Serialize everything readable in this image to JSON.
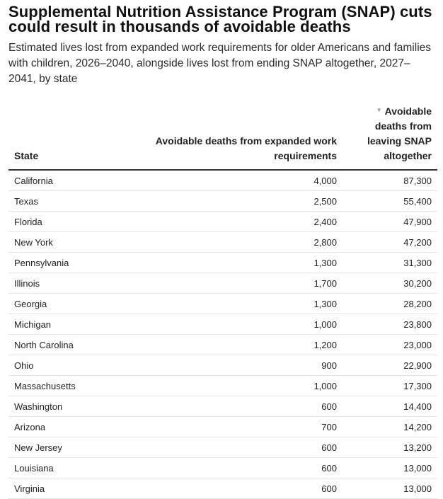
{
  "chart_data": {
    "type": "table",
    "title": "Supplemental Nutrition Assistance Program (SNAP) cuts could result in thousands of avoidable deaths",
    "subtitle": "Estimated lives lost from expanded work requirements for older Americans and families with children, 2026–2040, alongside lives lost from ending SNAP altogether, 2027–2041, by state",
    "columns": [
      "State",
      "Avoidable deaths from expanded work requirements",
      "Avoidable deaths from leaving SNAP altogether"
    ],
    "sorted_column": "Avoidable deaths from leaving SNAP altogether",
    "sort_order": "descending",
    "rows": [
      {
        "state": "California",
        "work": "4,000",
        "leave": "87,300"
      },
      {
        "state": "Texas",
        "work": "2,500",
        "leave": "55,400"
      },
      {
        "state": "Florida",
        "work": "2,400",
        "leave": "47,900"
      },
      {
        "state": "New York",
        "work": "2,800",
        "leave": "47,200"
      },
      {
        "state": "Pennsylvania",
        "work": "1,300",
        "leave": "31,300"
      },
      {
        "state": "Illinois",
        "work": "1,700",
        "leave": "30,200"
      },
      {
        "state": "Georgia",
        "work": "1,300",
        "leave": "28,200"
      },
      {
        "state": "Michigan",
        "work": "1,000",
        "leave": "23,800"
      },
      {
        "state": "North Carolina",
        "work": "1,200",
        "leave": "23,000"
      },
      {
        "state": "Ohio",
        "work": "900",
        "leave": "22,900"
      },
      {
        "state": "Massachusetts",
        "work": "1,000",
        "leave": "17,300"
      },
      {
        "state": "Washington",
        "work": "600",
        "leave": "14,400"
      },
      {
        "state": "Arizona",
        "work": "700",
        "leave": "14,200"
      },
      {
        "state": "New Jersey",
        "work": "600",
        "leave": "13,200"
      },
      {
        "state": "Louisiana",
        "work": "600",
        "leave": "13,000"
      },
      {
        "state": "Virginia",
        "work": "600",
        "leave": "13,000"
      }
    ]
  }
}
